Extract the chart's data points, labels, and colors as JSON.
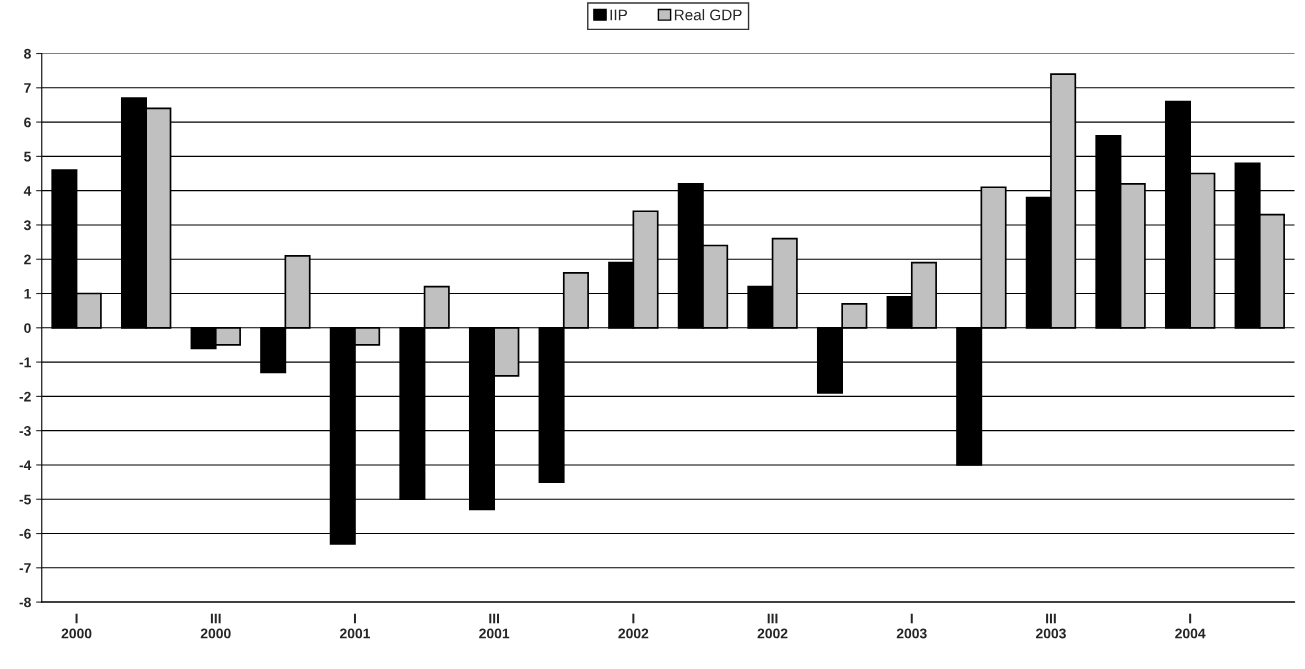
{
  "chart_data": {
    "type": "bar",
    "categories": [
      "I\n2000",
      null,
      "III\n2000",
      null,
      "I\n2001",
      null,
      "III\n2001",
      null,
      "I\n2002",
      null,
      "III\n2002",
      null,
      "I\n2003",
      null,
      "III\n2003",
      null,
      "I\n2004",
      null
    ],
    "series": [
      {
        "name": "IIP",
        "color": "#000000",
        "values": [
          4.6,
          6.7,
          -0.6,
          -1.3,
          -6.3,
          -5.0,
          -5.3,
          -4.5,
          1.9,
          4.2,
          1.2,
          -1.9,
          0.9,
          -4.0,
          3.8,
          5.6,
          6.6,
          4.8
        ]
      },
      {
        "name": "Real GDP",
        "color": "#c0c0c0",
        "values": [
          1.0,
          6.4,
          -0.5,
          2.1,
          -0.5,
          1.2,
          -1.4,
          1.6,
          3.4,
          2.4,
          2.6,
          0.7,
          1.9,
          4.1,
          7.4,
          4.2,
          4.5,
          3.3
        ]
      }
    ],
    "ylim": [
      -8,
      8
    ],
    "yticks": [
      -8,
      -7,
      -6,
      -5,
      -4,
      -3,
      -2,
      -1,
      0,
      1,
      2,
      3,
      4,
      5,
      6,
      7,
      8
    ],
    "grid": "y",
    "legend": "top"
  }
}
